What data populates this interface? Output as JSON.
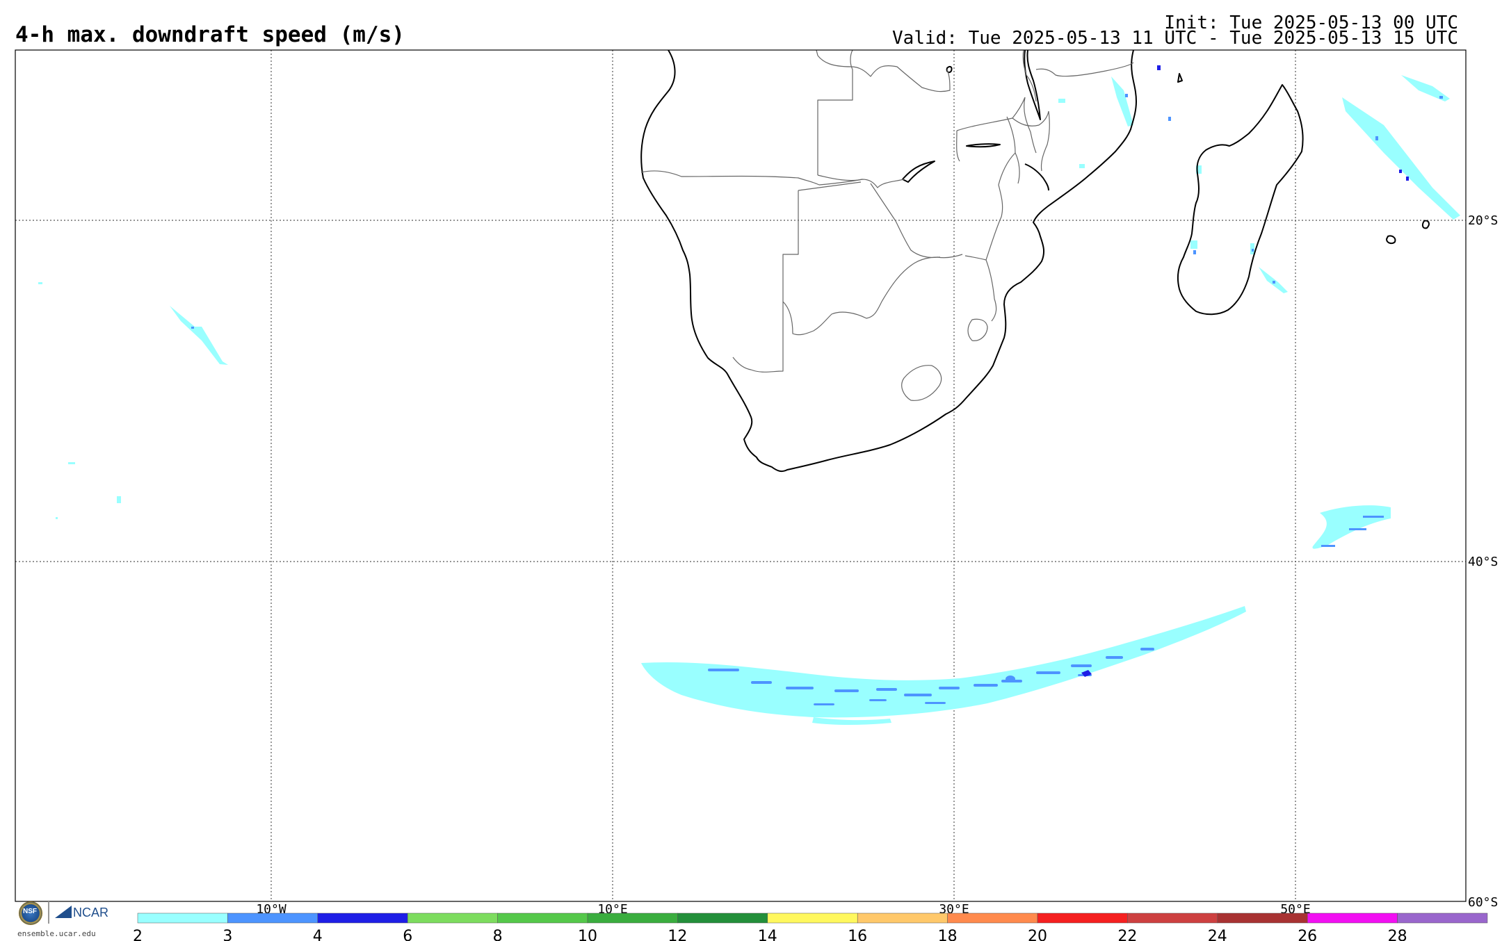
{
  "header": {
    "title": "4-h max. downdraft speed (m/s)",
    "init": "Init: Tue 2025-05-13 00 UTC",
    "valid": "Valid: Tue 2025-05-13 11 UTC - Tue 2025-05-13 15 UTC"
  },
  "map": {
    "lat_labels": [
      "20°S",
      "40°S",
      "60°S"
    ],
    "lon_labels": [
      "10°W",
      "10°E",
      "30°E",
      "50°E"
    ],
    "colors": {
      "coast": "#000000",
      "border": "#666666",
      "grid": "#555555",
      "shade_light": "#99ffff",
      "shade_mid": "#4d94ff",
      "shade_dark": "#1e1ee6"
    }
  },
  "colorbar": {
    "labels": [
      "2",
      "3",
      "4",
      "6",
      "8",
      "10",
      "12",
      "14",
      "16",
      "18",
      "20",
      "22",
      "24",
      "26",
      "28"
    ],
    "colors": [
      "#99ffff",
      "#4d94ff",
      "#1e1ee6",
      "#7ddc5e",
      "#55c84a",
      "#3aad3e",
      "#238f3a",
      "#fff85e",
      "#ffc86a",
      "#ff8a4d",
      "#f52020",
      "#cd4040",
      "#a83232",
      "#f20ff2",
      "#9966cc"
    ]
  },
  "logo": {
    "ncar": "NCAR",
    "nsf": "NSF",
    "url": "ensemble.ucar.edu"
  }
}
